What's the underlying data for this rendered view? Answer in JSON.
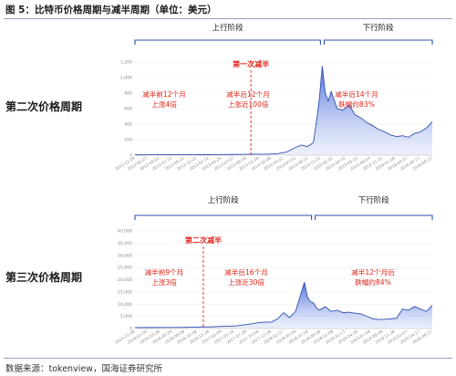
{
  "figure": {
    "title": "图 5：比特币价格周期与减半周期（单位：美元）",
    "source": "数据来源：tokenview，国海证券研究所"
  },
  "colors": {
    "accent_blue": "#2e4fb0",
    "halving_red": "#e0231a",
    "area_fill": "#3b5fd6"
  },
  "chart_data": [
    {
      "type": "area",
      "row_label": "第二次价格周期",
      "phases": [
        {
          "label": "上行阶段"
        },
        {
          "label": "下行阶段"
        }
      ],
      "halving_label": "第一次减半",
      "annotations": [
        {
          "lines": [
            "减半前12个月",
            "上涨4倍"
          ]
        },
        {
          "lines": [
            "减半后12个月",
            "上涨近100倍"
          ]
        },
        {
          "lines": [
            "减半后14个月",
            "跌幅约83%"
          ]
        }
      ],
      "ylim": [
        0,
        1200
      ],
      "yticks": [
        "1,200",
        "1,000",
        "800",
        "600",
        "400",
        "200",
        "0"
      ],
      "x_tick_labels": [
        "2011-12-09",
        "2012-02-21",
        "2012-05-01",
        "2012-07-11",
        "2012-09-21",
        "2012-12-01",
        "2013-02-12",
        "2013-04-25",
        "2013-07-07",
        "2013-09-18",
        "2013-11-28",
        "2014-02-08",
        "2014-04-21",
        "2014-07-01",
        "2014-09-11",
        "2014-11-21",
        "2015-02-01",
        "2015-04-14",
        "2015-06-24",
        "2015-09-04",
        "2015-11-15",
        "2016-01-26",
        "2016-04-07",
        "2016-06-17",
        "2016-08-27"
      ],
      "x_index_range": [
        0,
        100
      ],
      "halving_x": 39,
      "up_phase_range": [
        0,
        63
      ],
      "down_phase_range": [
        63,
        100
      ],
      "series": [
        {
          "x": [
            0,
            6,
            12,
            18,
            24,
            30,
            36,
            39,
            42,
            45,
            48,
            51,
            54,
            56,
            58,
            60,
            61,
            62,
            63,
            64,
            65,
            66,
            68,
            70,
            72,
            74,
            76,
            78,
            80,
            82,
            84,
            86,
            88,
            90,
            92,
            94,
            96,
            98,
            100
          ],
          "y": [
            3,
            5,
            5,
            5,
            6,
            8,
            10,
            12,
            13,
            13,
            20,
            40,
            100,
            130,
            110,
            160,
            420,
            720,
            1150,
            800,
            700,
            820,
            600,
            580,
            650,
            520,
            480,
            420,
            380,
            330,
            300,
            260,
            240,
            250,
            230,
            280,
            300,
            350,
            430
          ]
        }
      ]
    },
    {
      "type": "area",
      "row_label": "第三次价格周期",
      "phases": [
        {
          "label": "上行阶段"
        },
        {
          "label": "下行阶段"
        }
      ],
      "halving_label": "第二次减半",
      "annotations": [
        {
          "lines": [
            "减半前9个月",
            "上涨3倍"
          ]
        },
        {
          "lines": [
            "减半后16个月",
            "上涨近30倍"
          ]
        },
        {
          "lines": [
            "减半12个月后",
            "跌幅约84%"
          ]
        }
      ],
      "ylim": [
        0,
        40000
      ],
      "yticks": [
        "40,000",
        "35,000",
        "30,000",
        "25,000",
        "20,000",
        "15,000",
        "10,000",
        "5,000",
        "0"
      ],
      "x_tick_labels": [
        "2015-11-08",
        "2016-01-05",
        "2016-03-18",
        "2016-05-29",
        "2016-08-08",
        "2016-10-18",
        "2016-12-28",
        "2017-03-09",
        "2017-05-19",
        "2017-07-29",
        "2017-10-08",
        "2017-12-18",
        "2018-02-27",
        "2018-05-09",
        "2018-07-19",
        "2018-09-28",
        "2018-12-08",
        "2019-02-17",
        "2019-04-29",
        "2019-07-09",
        "2019-09-18",
        "2019-11-28",
        "2020-02-07",
        "2020-04-17",
        "2020-06-27"
      ],
      "x_index_range": [
        0,
        100
      ],
      "halving_x": 23,
      "up_phase_range": [
        0,
        60
      ],
      "down_phase_range": [
        60,
        100
      ],
      "series": [
        {
          "x": [
            0,
            5,
            10,
            15,
            20,
            23,
            26,
            30,
            34,
            38,
            42,
            46,
            48,
            50,
            52,
            54,
            55,
            56,
            57,
            58,
            59,
            60,
            61,
            62,
            64,
            66,
            68,
            70,
            72,
            74,
            76,
            78,
            80,
            82,
            84,
            86,
            88,
            90,
            92,
            94,
            96,
            98,
            100
          ],
          "y": [
            400,
            420,
            430,
            450,
            600,
            650,
            700,
            900,
            1100,
            1700,
            2500,
            2700,
            4000,
            6500,
            4500,
            7000,
            11000,
            15000,
            19000,
            13000,
            11000,
            10500,
            8500,
            7500,
            9000,
            7000,
            7500,
            6500,
            6700,
            6300,
            6000,
            5000,
            4000,
            3700,
            3800,
            4000,
            4200,
            8000,
            7500,
            9000,
            8000,
            7000,
            9500
          ]
        }
      ]
    }
  ]
}
